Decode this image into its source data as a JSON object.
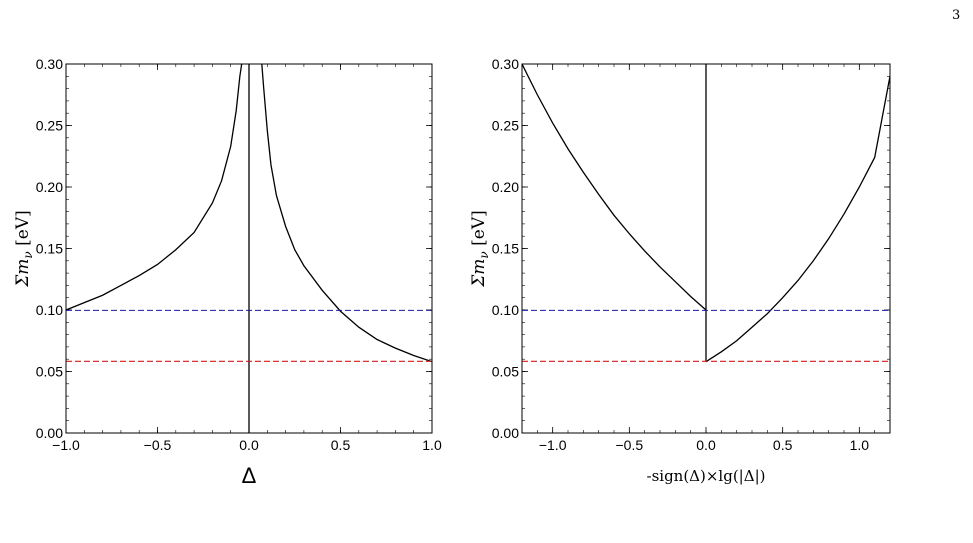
{
  "page_number": "3",
  "caption_fragment": "",
  "colors": {
    "curve": "#000000",
    "blue_line": "#1a1aa8",
    "red_line": "#d11a1a",
    "axis": "#000000"
  },
  "chart_data": [
    {
      "type": "line",
      "xlabel": "Δ",
      "ylabel": "Σm_ν [eV]",
      "xlim": [
        -1.0,
        1.0
      ],
      "ylim": [
        0.0,
        0.3
      ],
      "xticks": [
        "-1.0",
        "-0.5",
        "0.0",
        "0.5",
        "1.0"
      ],
      "xtick_values": [
        -1.0,
        -0.5,
        0.0,
        0.5,
        1.0
      ],
      "yticks": [
        "0.00",
        "0.05",
        "0.10",
        "0.15",
        "0.20",
        "0.25",
        "0.30"
      ],
      "ytick_values": [
        0.0,
        0.05,
        0.1,
        0.15,
        0.2,
        0.25,
        0.3
      ],
      "series": [
        {
          "style": "solid",
          "color": "#000000",
          "x": [
            -1.0,
            -0.9,
            -0.8,
            -0.7,
            -0.6,
            -0.5,
            -0.4,
            -0.3,
            -0.2,
            -0.15,
            -0.1,
            -0.07,
            -0.05,
            -0.04
          ],
          "y": [
            0.1,
            0.106,
            0.112,
            0.12,
            0.128,
            0.137,
            0.149,
            0.163,
            0.187,
            0.205,
            0.233,
            0.262,
            0.29,
            0.3
          ]
        },
        {
          "style": "solid",
          "color": "#000000",
          "x": [
            0.07,
            0.08,
            0.1,
            0.12,
            0.15,
            0.2,
            0.25,
            0.3,
            0.4,
            0.5,
            0.6,
            0.7,
            0.8,
            0.9,
            1.0
          ],
          "y": [
            0.3,
            0.281,
            0.246,
            0.218,
            0.193,
            0.168,
            0.149,
            0.136,
            0.116,
            0.099,
            0.086,
            0.076,
            0.069,
            0.063,
            0.058
          ]
        },
        {
          "style": "solid",
          "color": "#000000",
          "x": [
            0.0,
            0.0
          ],
          "y": [
            0.0,
            0.3
          ]
        },
        {
          "style": "dashed",
          "color": "#1a1aa8",
          "x": [
            -1.0,
            1.0
          ],
          "y": [
            0.0997,
            0.0997
          ]
        },
        {
          "style": "dashed",
          "color": "#d11a1a",
          "x": [
            -1.0,
            1.0
          ],
          "y": [
            0.0583,
            0.0583
          ]
        }
      ]
    },
    {
      "type": "line",
      "xlabel": "-sign(Δ)×lg(|Δ|)",
      "ylabel": "Σm_ν [eV]",
      "xlim": [
        -1.2,
        1.2
      ],
      "ylim": [
        0.0,
        0.3
      ],
      "xticks": [
        "-1.0",
        "-0.5",
        "0.0",
        "0.5",
        "1.0"
      ],
      "xtick_values": [
        -1.0,
        -0.5,
        0.0,
        0.5,
        1.0
      ],
      "yticks": [
        "0.00",
        "0.05",
        "0.10",
        "0.15",
        "0.20",
        "0.25",
        "0.30"
      ],
      "ytick_values": [
        0.0,
        0.05,
        0.1,
        0.15,
        0.2,
        0.25,
        0.3
      ],
      "series": [
        {
          "style": "solid",
          "color": "#000000",
          "x": [
            -1.2,
            -1.1,
            -1.0,
            -0.9,
            -0.8,
            -0.7,
            -0.6,
            -0.5,
            -0.4,
            -0.3,
            -0.2,
            -0.1,
            0.0
          ],
          "y": [
            0.3,
            0.275,
            0.252,
            0.231,
            0.212,
            0.194,
            0.177,
            0.162,
            0.148,
            0.135,
            0.123,
            0.111,
            0.1
          ]
        },
        {
          "style": "solid",
          "color": "#000000",
          "x": [
            0.0,
            0.1,
            0.2,
            0.3,
            0.4,
            0.5,
            0.6,
            0.7,
            0.8,
            0.9,
            1.0,
            1.1,
            1.2
          ],
          "y": [
            0.058,
            0.066,
            0.075,
            0.086,
            0.097,
            0.11,
            0.124,
            0.14,
            0.158,
            0.178,
            0.2,
            0.224,
            0.29
          ]
        },
        {
          "style": "solid",
          "color": "#000000",
          "x": [
            0.0,
            0.0
          ],
          "y": [
            0.058,
            0.3
          ]
        },
        {
          "style": "dashed",
          "color": "#1a1aa8",
          "x": [
            -1.2,
            1.2
          ],
          "y": [
            0.0997,
            0.0997
          ]
        },
        {
          "style": "dashed",
          "color": "#d11a1a",
          "x": [
            -1.2,
            1.2
          ],
          "y": [
            0.0583,
            0.0583
          ]
        }
      ]
    }
  ]
}
